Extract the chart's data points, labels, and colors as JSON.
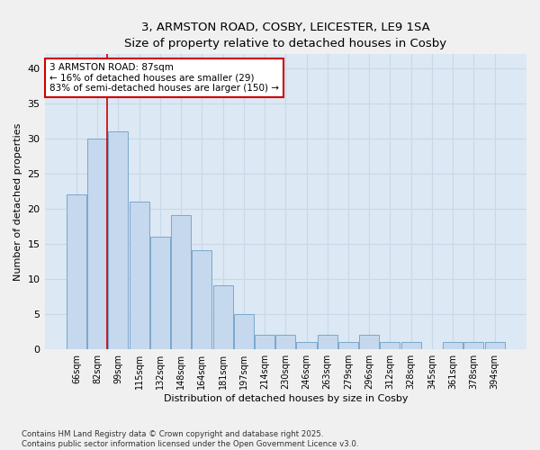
{
  "title_line1": "3, ARMSTON ROAD, COSBY, LEICESTER, LE9 1SA",
  "title_line2": "Size of property relative to detached houses in Cosby",
  "xlabel": "Distribution of detached houses by size in Cosby",
  "ylabel": "Number of detached properties",
  "categories": [
    "66sqm",
    "82sqm",
    "99sqm",
    "115sqm",
    "132sqm",
    "148sqm",
    "164sqm",
    "181sqm",
    "197sqm",
    "214sqm",
    "230sqm",
    "246sqm",
    "263sqm",
    "279sqm",
    "296sqm",
    "312sqm",
    "328sqm",
    "345sqm",
    "361sqm",
    "378sqm",
    "394sqm"
  ],
  "values": [
    22,
    30,
    31,
    21,
    16,
    19,
    14,
    9,
    5,
    2,
    2,
    1,
    2,
    1,
    2,
    1,
    1,
    0,
    1,
    1,
    1
  ],
  "bar_color": "#c5d8ed",
  "bar_edge_color": "#7aa8cc",
  "grid_color": "#c8d8e8",
  "background_color": "#dce8f4",
  "annotation_text": "3 ARMSTON ROAD: 87sqm\n← 16% of detached houses are smaller (29)\n83% of semi-detached houses are larger (150) →",
  "annotation_box_color": "#ffffff",
  "annotation_box_edge_color": "#cc0000",
  "vline_color": "#cc0000",
  "vline_x": 1.48,
  "ylim": [
    0,
    42
  ],
  "yticks": [
    0,
    5,
    10,
    15,
    20,
    25,
    30,
    35,
    40
  ],
  "footer_line1": "Contains HM Land Registry data © Crown copyright and database right 2025.",
  "footer_line2": "Contains public sector information licensed under the Open Government Licence v3.0."
}
